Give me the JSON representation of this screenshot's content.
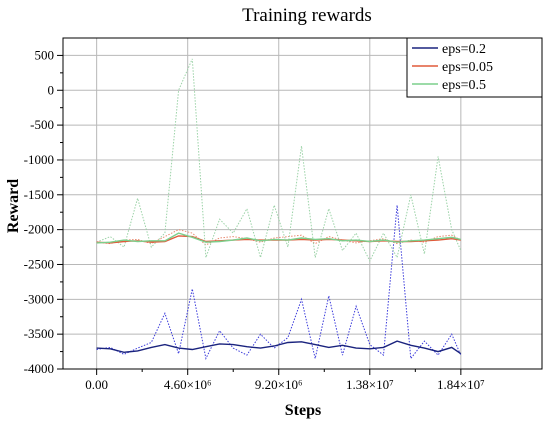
{
  "chart_data": {
    "type": "line",
    "title": "Training rewards",
    "xlabel": "Steps",
    "ylabel": "Reward",
    "xlim": [
      -1700000,
      22500000
    ],
    "ylim": [
      -4000,
      750
    ],
    "x_ticks": [
      0,
      4600000,
      9200000,
      13800000,
      18400000
    ],
    "x_tick_labels": [
      "0.00",
      "4.60×10⁶",
      "9.20×10⁶",
      "1.38×10⁷",
      "1.84×10⁷"
    ],
    "y_ticks": [
      500,
      0,
      -500,
      -1000,
      -1500,
      -2000,
      -2500,
      -3000,
      -3500,
      -4000
    ],
    "y_tick_labels": [
      "500",
      "0",
      "-500",
      "-1000",
      "-1500",
      "-2000",
      "-2500",
      "-3000",
      "-3500",
      "-4000"
    ],
    "grid": true,
    "legend_position": "top-right",
    "x": [
      0,
      690000,
      1380000,
      2070000,
      2760000,
      3450000,
      4140000,
      4830000,
      5520000,
      6210000,
      6900000,
      7590000,
      8280000,
      8970000,
      9660000,
      10350000,
      11040000,
      11730000,
      12420000,
      13110000,
      13800000,
      14490000,
      15180000,
      15870000,
      16560000,
      17250000,
      17940000,
      18400000
    ],
    "series": [
      {
        "name": "eps=0.2",
        "color": "#1a237e",
        "raw_color": "#3a3adb",
        "values": [
          -3700,
          -3710,
          -3760,
          -3740,
          -3690,
          -3650,
          -3700,
          -3720,
          -3680,
          -3640,
          -3650,
          -3680,
          -3700,
          -3670,
          -3620,
          -3610,
          -3650,
          -3690,
          -3660,
          -3700,
          -3710,
          -3690,
          -3600,
          -3660,
          -3700,
          -3750,
          -3690,
          -3780
        ],
        "raw_values": [
          -3720,
          -3690,
          -3790,
          -3700,
          -3620,
          -3200,
          -3780,
          -2850,
          -3850,
          -3450,
          -3700,
          -3800,
          -3500,
          -3700,
          -3550,
          -3000,
          -3850,
          -2950,
          -3800,
          -3100,
          -3650,
          -3800,
          -1650,
          -3850,
          -3600,
          -3800,
          -3500,
          -3800
        ]
      },
      {
        "name": "eps=0.05",
        "color": "#e05a3a",
        "raw_color": "#e88a70",
        "values": [
          -2180,
          -2190,
          -2170,
          -2160,
          -2180,
          -2170,
          -2090,
          -2100,
          -2170,
          -2160,
          -2150,
          -2140,
          -2150,
          -2150,
          -2150,
          -2140,
          -2150,
          -2140,
          -2150,
          -2160,
          -2170,
          -2160,
          -2170,
          -2170,
          -2160,
          -2150,
          -2130,
          -2150
        ],
        "raw_values": [
          -2180,
          -2200,
          -2150,
          -2140,
          -2200,
          -2100,
          -2000,
          -2050,
          -2220,
          -2120,
          -2100,
          -2130,
          -2180,
          -2120,
          -2100,
          -2080,
          -2200,
          -2100,
          -2150,
          -2190,
          -2160,
          -2130,
          -2200,
          -2150,
          -2180,
          -2100,
          -2080,
          -2150
        ]
      },
      {
        "name": "eps=0.5",
        "color": "#7ccf8c",
        "raw_color": "#9ad2a6",
        "values": [
          -2190,
          -2180,
          -2150,
          -2170,
          -2160,
          -2160,
          -2050,
          -2110,
          -2180,
          -2170,
          -2150,
          -2120,
          -2160,
          -2140,
          -2150,
          -2120,
          -2140,
          -2130,
          -2160,
          -2150,
          -2170,
          -2150,
          -2180,
          -2160,
          -2150,
          -2130,
          -2110,
          -2140
        ],
        "raw_values": [
          -2180,
          -2100,
          -2250,
          -1550,
          -2250,
          -2050,
          0,
          450,
          -2400,
          -1850,
          -2050,
          -1700,
          -2400,
          -1650,
          -2250,
          -800,
          -2400,
          -1700,
          -2300,
          -2050,
          -2450,
          -2050,
          -2400,
          -1500,
          -2350,
          -950,
          -2000,
          -2300
        ]
      }
    ]
  }
}
